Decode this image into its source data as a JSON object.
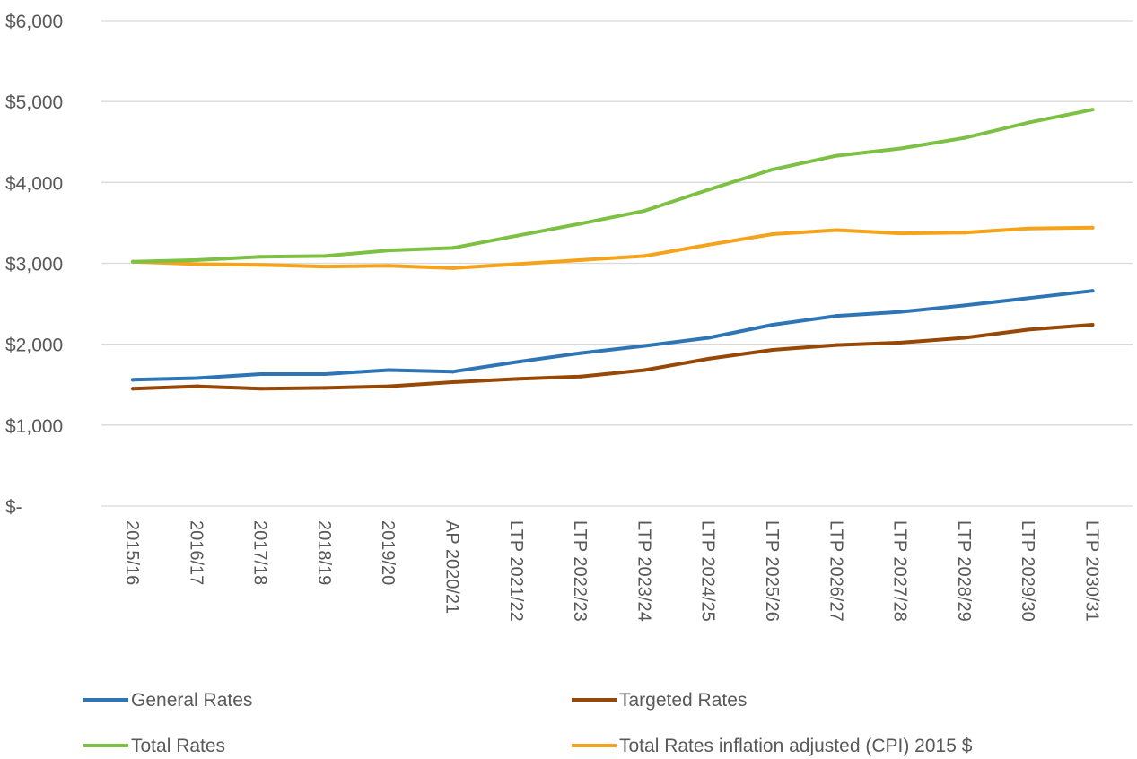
{
  "chart_data": {
    "type": "line",
    "title": "",
    "xlabel": "",
    "ylabel": "",
    "ylim": [
      0,
      6000
    ],
    "yticks": [
      {
        "value": 0,
        "label": "$-"
      },
      {
        "value": 1000,
        "label": "$1,000"
      },
      {
        "value": 2000,
        "label": "$2,000"
      },
      {
        "value": 3000,
        "label": "$3,000"
      },
      {
        "value": 4000,
        "label": "$4,000"
      },
      {
        "value": 5000,
        "label": "$5,000"
      },
      {
        "value": 6000,
        "label": "$6,000"
      }
    ],
    "grid": true,
    "legend_position": "bottom",
    "categories": [
      "2015/16",
      "2016/17",
      "2017/18",
      "2018/19",
      "2019/20",
      "AP 2020/21",
      "LTP 2021/22",
      "LTP 2022/23",
      "LTP 2023/24",
      "LTP 2024/25",
      "LTP 2025/26",
      "LTP 2026/27",
      "LTP 2027/28",
      "LTP 2028/29",
      "LTP 2029/30",
      "LTP 2030/31"
    ],
    "series": [
      {
        "name": "General Rates",
        "color": "#2e75b6",
        "values": [
          1560,
          1580,
          1630,
          1630,
          1680,
          1660,
          1780,
          1890,
          1980,
          2080,
          2240,
          2350,
          2400,
          2480,
          2570,
          2660
        ]
      },
      {
        "name": "Targeted Rates",
        "color": "#974706",
        "values": [
          1450,
          1480,
          1450,
          1460,
          1480,
          1530,
          1570,
          1600,
          1680,
          1820,
          1930,
          1990,
          2020,
          2080,
          2180,
          2240
        ]
      },
      {
        "name": "Total Rates",
        "color": "#7cc143",
        "values": [
          3020,
          3040,
          3080,
          3090,
          3160,
          3190,
          3340,
          3490,
          3650,
          3910,
          4160,
          4330,
          4420,
          4550,
          4740,
          4900
        ]
      },
      {
        "name": "Total Rates inflation adjusted (CPI) 2015 $",
        "color": "#f5a31a",
        "values": [
          3020,
          2990,
          2980,
          2960,
          2970,
          2940,
          2990,
          3040,
          3090,
          3230,
          3360,
          3410,
          3370,
          3380,
          3430,
          3440
        ]
      }
    ]
  }
}
